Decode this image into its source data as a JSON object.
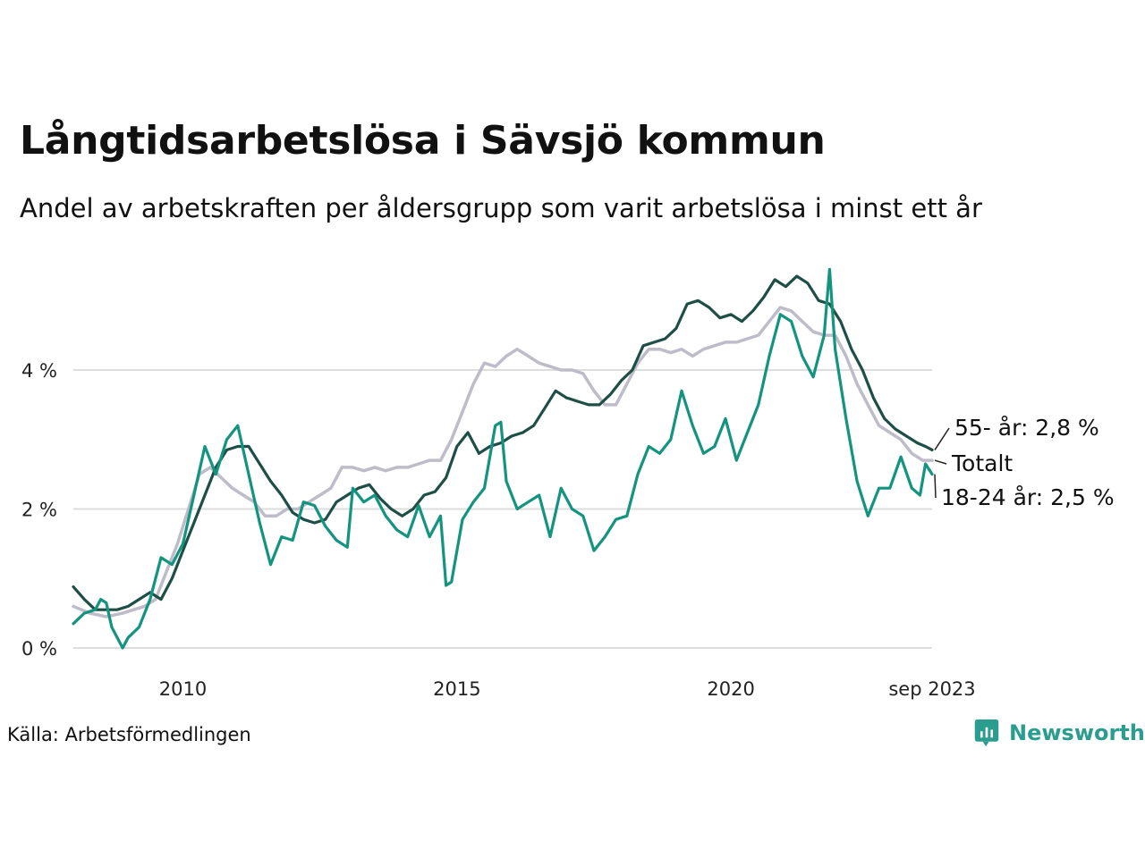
{
  "title": "Långtidsarbetslösa i Sävsjö kommun",
  "subtitle": "Andel av arbetskraften per åldersgrupp som varit arbetslösa i minst ett år",
  "source": "Källa: Arbetsförmedlingen",
  "logo": {
    "text": "Newsworthy",
    "icon": "newsworthy-chart-bubble-icon"
  },
  "colors": {
    "total": "#bfbcc9",
    "age55": "#1f4e47",
    "age18_24": "#14937f",
    "grid": "#dddddd",
    "brand": "#2a9d8f"
  },
  "chart_data": {
    "type": "line",
    "title": "Långtidsarbetslösa i Sävsjö kommun",
    "xlabel": "",
    "ylabel": "",
    "xlim": [
      2008.0,
      2023.67
    ],
    "ylim": [
      0,
      5.5
    ],
    "x_ticks": [
      {
        "value": 2010,
        "label": "2010"
      },
      {
        "value": 2015,
        "label": "2015"
      },
      {
        "value": 2020,
        "label": "2020"
      },
      {
        "value": 2023.67,
        "label": "sep 2023"
      }
    ],
    "y_ticks": [
      {
        "value": 0,
        "label": "0 %"
      },
      {
        "value": 2,
        "label": "2 %"
      },
      {
        "value": 4,
        "label": "4 %"
      }
    ],
    "series": [
      {
        "key": "total",
        "name": "Totalt",
        "label": "Totalt",
        "color": "#bfbcc9",
        "points": [
          [
            2008.0,
            0.6
          ],
          [
            2008.3,
            0.5
          ],
          [
            2008.6,
            0.45
          ],
          [
            2008.9,
            0.5
          ],
          [
            2009.1,
            0.55
          ],
          [
            2009.3,
            0.6
          ],
          [
            2009.5,
            0.7
          ],
          [
            2009.7,
            1.1
          ],
          [
            2009.9,
            1.5
          ],
          [
            2010.1,
            2.0
          ],
          [
            2010.3,
            2.5
          ],
          [
            2010.5,
            2.6
          ],
          [
            2010.7,
            2.45
          ],
          [
            2010.9,
            2.3
          ],
          [
            2011.1,
            2.2
          ],
          [
            2011.3,
            2.1
          ],
          [
            2011.5,
            1.9
          ],
          [
            2011.7,
            1.9
          ],
          [
            2011.9,
            2.0
          ],
          [
            2012.1,
            2.0
          ],
          [
            2012.3,
            2.1
          ],
          [
            2012.5,
            2.2
          ],
          [
            2012.7,
            2.3
          ],
          [
            2012.9,
            2.6
          ],
          [
            2013.1,
            2.6
          ],
          [
            2013.3,
            2.55
          ],
          [
            2013.5,
            2.6
          ],
          [
            2013.7,
            2.55
          ],
          [
            2013.9,
            2.6
          ],
          [
            2014.1,
            2.6
          ],
          [
            2014.3,
            2.65
          ],
          [
            2014.5,
            2.7
          ],
          [
            2014.7,
            2.7
          ],
          [
            2014.9,
            3.0
          ],
          [
            2015.1,
            3.4
          ],
          [
            2015.3,
            3.8
          ],
          [
            2015.5,
            4.1
          ],
          [
            2015.7,
            4.05
          ],
          [
            2015.9,
            4.2
          ],
          [
            2016.1,
            4.3
          ],
          [
            2016.3,
            4.2
          ],
          [
            2016.5,
            4.1
          ],
          [
            2016.7,
            4.05
          ],
          [
            2016.9,
            4.0
          ],
          [
            2017.1,
            4.0
          ],
          [
            2017.3,
            3.95
          ],
          [
            2017.5,
            3.7
          ],
          [
            2017.7,
            3.5
          ],
          [
            2017.9,
            3.5
          ],
          [
            2018.1,
            3.8
          ],
          [
            2018.3,
            4.1
          ],
          [
            2018.5,
            4.3
          ],
          [
            2018.7,
            4.3
          ],
          [
            2018.9,
            4.25
          ],
          [
            2019.1,
            4.3
          ],
          [
            2019.3,
            4.2
          ],
          [
            2019.5,
            4.3
          ],
          [
            2019.7,
            4.35
          ],
          [
            2019.9,
            4.4
          ],
          [
            2020.1,
            4.4
          ],
          [
            2020.3,
            4.45
          ],
          [
            2020.5,
            4.5
          ],
          [
            2020.7,
            4.7
          ],
          [
            2020.9,
            4.9
          ],
          [
            2021.1,
            4.85
          ],
          [
            2021.3,
            4.7
          ],
          [
            2021.5,
            4.55
          ],
          [
            2021.7,
            4.5
          ],
          [
            2021.9,
            4.5
          ],
          [
            2022.1,
            4.2
          ],
          [
            2022.3,
            3.8
          ],
          [
            2022.5,
            3.5
          ],
          [
            2022.7,
            3.2
          ],
          [
            2022.9,
            3.1
          ],
          [
            2023.1,
            3.0
          ],
          [
            2023.3,
            2.8
          ],
          [
            2023.5,
            2.7
          ],
          [
            2023.67,
            2.7
          ]
        ]
      },
      {
        "key": "age55",
        "name": "55- år",
        "label": "55- år: 2,8 %",
        "color": "#1f4e47",
        "points": [
          [
            2008.0,
            0.88
          ],
          [
            2008.2,
            0.7
          ],
          [
            2008.4,
            0.55
          ],
          [
            2008.6,
            0.55
          ],
          [
            2008.8,
            0.55
          ],
          [
            2009.0,
            0.6
          ],
          [
            2009.2,
            0.7
          ],
          [
            2009.4,
            0.8
          ],
          [
            2009.6,
            0.7
          ],
          [
            2009.8,
            1.0
          ],
          [
            2010.0,
            1.4
          ],
          [
            2010.2,
            1.8
          ],
          [
            2010.4,
            2.2
          ],
          [
            2010.6,
            2.6
          ],
          [
            2010.8,
            2.85
          ],
          [
            2011.0,
            2.9
          ],
          [
            2011.2,
            2.9
          ],
          [
            2011.4,
            2.65
          ],
          [
            2011.6,
            2.4
          ],
          [
            2011.8,
            2.2
          ],
          [
            2012.0,
            1.95
          ],
          [
            2012.2,
            1.85
          ],
          [
            2012.4,
            1.8
          ],
          [
            2012.6,
            1.85
          ],
          [
            2012.8,
            2.1
          ],
          [
            2013.0,
            2.2
          ],
          [
            2013.2,
            2.3
          ],
          [
            2013.4,
            2.35
          ],
          [
            2013.6,
            2.15
          ],
          [
            2013.8,
            2.0
          ],
          [
            2014.0,
            1.9
          ],
          [
            2014.2,
            2.0
          ],
          [
            2014.4,
            2.2
          ],
          [
            2014.6,
            2.25
          ],
          [
            2014.8,
            2.45
          ],
          [
            2015.0,
            2.9
          ],
          [
            2015.2,
            3.1
          ],
          [
            2015.4,
            2.8
          ],
          [
            2015.6,
            2.9
          ],
          [
            2015.8,
            2.95
          ],
          [
            2016.0,
            3.05
          ],
          [
            2016.2,
            3.1
          ],
          [
            2016.4,
            3.2
          ],
          [
            2016.6,
            3.45
          ],
          [
            2016.8,
            3.7
          ],
          [
            2017.0,
            3.6
          ],
          [
            2017.2,
            3.55
          ],
          [
            2017.4,
            3.5
          ],
          [
            2017.6,
            3.5
          ],
          [
            2017.8,
            3.65
          ],
          [
            2018.0,
            3.85
          ],
          [
            2018.2,
            4.0
          ],
          [
            2018.4,
            4.35
          ],
          [
            2018.6,
            4.4
          ],
          [
            2018.8,
            4.45
          ],
          [
            2019.0,
            4.6
          ],
          [
            2019.2,
            4.95
          ],
          [
            2019.4,
            5.0
          ],
          [
            2019.6,
            4.9
          ],
          [
            2019.8,
            4.75
          ],
          [
            2020.0,
            4.8
          ],
          [
            2020.2,
            4.7
          ],
          [
            2020.4,
            4.85
          ],
          [
            2020.6,
            5.05
          ],
          [
            2020.8,
            5.3
          ],
          [
            2021.0,
            5.2
          ],
          [
            2021.2,
            5.35
          ],
          [
            2021.4,
            5.25
          ],
          [
            2021.6,
            5.0
          ],
          [
            2021.8,
            4.95
          ],
          [
            2022.0,
            4.7
          ],
          [
            2022.2,
            4.3
          ],
          [
            2022.4,
            4.0
          ],
          [
            2022.6,
            3.6
          ],
          [
            2022.8,
            3.3
          ],
          [
            2023.0,
            3.15
          ],
          [
            2023.2,
            3.05
          ],
          [
            2023.4,
            2.95
          ],
          [
            2023.55,
            2.9
          ],
          [
            2023.67,
            2.85
          ]
        ]
      },
      {
        "key": "age18_24",
        "name": "18-24 år",
        "label": "18-24 år: 2,5 %",
        "color": "#14937f",
        "points": [
          [
            2008.0,
            0.35
          ],
          [
            2008.2,
            0.5
          ],
          [
            2008.4,
            0.55
          ],
          [
            2008.5,
            0.7
          ],
          [
            2008.6,
            0.65
          ],
          [
            2008.7,
            0.3
          ],
          [
            2008.8,
            0.15
          ],
          [
            2008.9,
            0.0
          ],
          [
            2009.0,
            0.15
          ],
          [
            2009.2,
            0.3
          ],
          [
            2009.4,
            0.7
          ],
          [
            2009.6,
            1.3
          ],
          [
            2009.8,
            1.2
          ],
          [
            2010.0,
            1.5
          ],
          [
            2010.2,
            2.2
          ],
          [
            2010.4,
            2.9
          ],
          [
            2010.6,
            2.5
          ],
          [
            2010.8,
            3.0
          ],
          [
            2011.0,
            3.2
          ],
          [
            2011.2,
            2.5
          ],
          [
            2011.4,
            1.8
          ],
          [
            2011.6,
            1.2
          ],
          [
            2011.8,
            1.6
          ],
          [
            2012.0,
            1.55
          ],
          [
            2012.2,
            2.1
          ],
          [
            2012.4,
            2.05
          ],
          [
            2012.6,
            1.75
          ],
          [
            2012.8,
            1.55
          ],
          [
            2013.0,
            1.45
          ],
          [
            2013.1,
            2.3
          ],
          [
            2013.3,
            2.1
          ],
          [
            2013.5,
            2.2
          ],
          [
            2013.7,
            1.9
          ],
          [
            2013.9,
            1.7
          ],
          [
            2014.1,
            1.6
          ],
          [
            2014.3,
            2.05
          ],
          [
            2014.5,
            1.6
          ],
          [
            2014.7,
            1.9
          ],
          [
            2014.8,
            0.9
          ],
          [
            2014.9,
            0.95
          ],
          [
            2015.1,
            1.85
          ],
          [
            2015.3,
            2.1
          ],
          [
            2015.5,
            2.3
          ],
          [
            2015.7,
            3.2
          ],
          [
            2015.8,
            3.25
          ],
          [
            2015.9,
            2.4
          ],
          [
            2016.1,
            2.0
          ],
          [
            2016.3,
            2.1
          ],
          [
            2016.5,
            2.2
          ],
          [
            2016.7,
            1.6
          ],
          [
            2016.9,
            2.3
          ],
          [
            2017.1,
            2.0
          ],
          [
            2017.3,
            1.9
          ],
          [
            2017.5,
            1.4
          ],
          [
            2017.7,
            1.6
          ],
          [
            2017.9,
            1.85
          ],
          [
            2018.1,
            1.9
          ],
          [
            2018.3,
            2.5
          ],
          [
            2018.5,
            2.9
          ],
          [
            2018.7,
            2.8
          ],
          [
            2018.9,
            3.0
          ],
          [
            2019.1,
            3.7
          ],
          [
            2019.3,
            3.2
          ],
          [
            2019.5,
            2.8
          ],
          [
            2019.7,
            2.9
          ],
          [
            2019.9,
            3.3
          ],
          [
            2020.1,
            2.7
          ],
          [
            2020.3,
            3.1
          ],
          [
            2020.5,
            3.5
          ],
          [
            2020.7,
            4.2
          ],
          [
            2020.9,
            4.8
          ],
          [
            2021.1,
            4.7
          ],
          [
            2021.3,
            4.2
          ],
          [
            2021.5,
            3.9
          ],
          [
            2021.7,
            4.5
          ],
          [
            2021.8,
            5.45
          ],
          [
            2021.9,
            4.3
          ],
          [
            2022.1,
            3.3
          ],
          [
            2022.3,
            2.4
          ],
          [
            2022.5,
            1.9
          ],
          [
            2022.7,
            2.3
          ],
          [
            2022.9,
            2.3
          ],
          [
            2023.1,
            2.75
          ],
          [
            2023.3,
            2.3
          ],
          [
            2023.45,
            2.2
          ],
          [
            2023.55,
            2.65
          ],
          [
            2023.67,
            2.5
          ]
        ]
      }
    ],
    "legend": "inline-right"
  }
}
